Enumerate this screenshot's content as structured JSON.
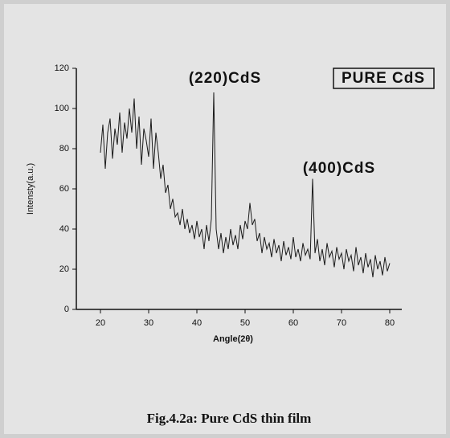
{
  "chart_data": {
    "type": "line",
    "x_label": "Angle(2θ)",
    "y_label": "Intensty(a.u.)",
    "annotations": [
      "(220)CdS",
      "(400)CdS"
    ],
    "caption": "Fig.4.2a: Pure CdS thin film",
    "legend": "top-right",
    "x": [
      20,
      20.5,
      21,
      21.5,
      22,
      22.5,
      23,
      23.5,
      24,
      24.5,
      25,
      25.5,
      26,
      26.5,
      27,
      27.5,
      28,
      28.5,
      29,
      29.5,
      30,
      30.5,
      31,
      31.5,
      32,
      32.5,
      33,
      33.5,
      34,
      34.5,
      35,
      35.5,
      36,
      36.5,
      37,
      37.5,
      38,
      38.5,
      39,
      39.5,
      40,
      40.5,
      41,
      41.5,
      42,
      42.5,
      43,
      43.5,
      44,
      44.5,
      45,
      45.5,
      46,
      46.5,
      47,
      47.5,
      48,
      48.5,
      49,
      49.5,
      50,
      50.5,
      51,
      51.5,
      52,
      52.5,
      53,
      53.5,
      54,
      54.5,
      55,
      55.5,
      56,
      56.5,
      57,
      57.5,
      58,
      58.5,
      59,
      59.5,
      60,
      60.5,
      61,
      61.5,
      62,
      62.5,
      63,
      63.5,
      64,
      64.5,
      65,
      65.5,
      66,
      66.5,
      67,
      67.5,
      68,
      68.5,
      69,
      69.5,
      70,
      70.5,
      71,
      71.5,
      72,
      72.5,
      73,
      73.5,
      74,
      74.5,
      75,
      75.5,
      76,
      76.5,
      77,
      77.5,
      78,
      78.5,
      79,
      79.5,
      80
    ],
    "series": [
      {
        "name": "PURE CdS",
        "color": "#1a1a1a",
        "values": [
          78,
          92,
          70,
          88,
          95,
          75,
          90,
          82,
          98,
          78,
          93,
          85,
          100,
          88,
          105,
          80,
          96,
          72,
          90,
          84,
          76,
          95,
          70,
          88,
          78,
          65,
          72,
          58,
          62,
          50,
          55,
          46,
          48,
          42,
          50,
          40,
          45,
          38,
          42,
          35,
          44,
          36,
          40,
          30,
          42,
          34,
          45,
          108,
          40,
          30,
          38,
          28,
          36,
          30,
          40,
          32,
          37,
          30,
          42,
          35,
          44,
          40,
          53,
          42,
          45,
          34,
          38,
          28,
          36,
          30,
          33,
          26,
          35,
          28,
          32,
          24,
          34,
          27,
          31,
          25,
          36,
          26,
          30,
          24,
          33,
          27,
          30,
          25,
          65,
          28,
          35,
          24,
          30,
          22,
          33,
          26,
          29,
          21,
          31,
          25,
          28,
          20,
          30,
          24,
          27,
          19,
          31,
          22,
          26,
          18,
          28,
          21,
          25,
          16,
          27,
          20,
          24,
          17,
          26,
          19,
          23
        ]
      }
    ],
    "xlim": [
      15,
      82.5
    ],
    "ylim": [
      0,
      120
    ],
    "xticks": [
      20,
      30,
      40,
      50,
      60,
      70,
      80
    ],
    "yticks": [
      0,
      20,
      40,
      60,
      80,
      100,
      120
    ]
  }
}
